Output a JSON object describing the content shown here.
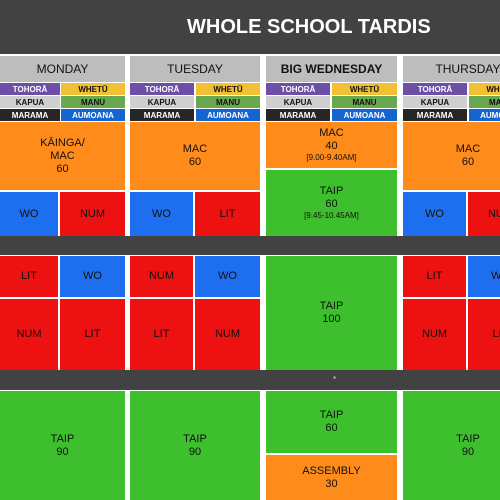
{
  "title": "WHOLE SCHOOL TARDIS",
  "groups": {
    "tohora": "TOHORĀ",
    "whetu": "WHETŪ",
    "kapua": "KAPUA",
    "manu": "MANU",
    "marama": "MARAMA",
    "aumoana": "AUMOANA"
  },
  "colors": {
    "orange": "#ff8c1a",
    "green": "#3dbf2e",
    "red": "#ee1111",
    "blue": "#1e6ff0",
    "dark": "#424242",
    "header_gray": "#bdbdbd"
  },
  "band_marker": "*",
  "days": {
    "monday": {
      "name": "MONDAY",
      "block1": {
        "label": "KĀINGA/\nMAC",
        "minutes": "60"
      },
      "row2": {
        "left": "WO",
        "right": "NUM"
      },
      "row3": {
        "left": "LIT",
        "right": "WO"
      },
      "row4": {
        "left": "NUM",
        "right": "LIT"
      },
      "block5": {
        "label": "TAIP",
        "minutes": "90"
      }
    },
    "tuesday": {
      "name": "TUESDAY",
      "block1": {
        "label": "MAC",
        "minutes": "60"
      },
      "row2": {
        "left": "WO",
        "right": "LIT"
      },
      "row3": {
        "left": "NUM",
        "right": "WO"
      },
      "row4": {
        "left": "LIT",
        "right": "NUM"
      },
      "block5": {
        "label": "TAIP",
        "minutes": "90"
      }
    },
    "wednesday": {
      "name": "BIG WEDNESDAY",
      "block1": {
        "label": "MAC",
        "minutes": "40",
        "time": "[9.00-9.40AM]"
      },
      "block2": {
        "label": "TAIP",
        "minutes": "60",
        "time": "[9.45-10.45AM]"
      },
      "block3": {
        "label": "TAIP",
        "minutes": "100"
      },
      "block4": {
        "label": "TAIP",
        "minutes": "60"
      },
      "block5": {
        "label": "ASSEMBLY",
        "minutes": "30"
      }
    },
    "thursday": {
      "name": "THURSDAY",
      "block1": {
        "label": "MAC",
        "minutes": "60"
      },
      "row2": {
        "left": "WO",
        "right": "NUM"
      },
      "row3": {
        "left": "LIT",
        "right": "WO"
      },
      "row4": {
        "left": "NUM",
        "right": "LIT"
      },
      "block5": {
        "label": "TAIP",
        "minutes": "90"
      }
    }
  }
}
